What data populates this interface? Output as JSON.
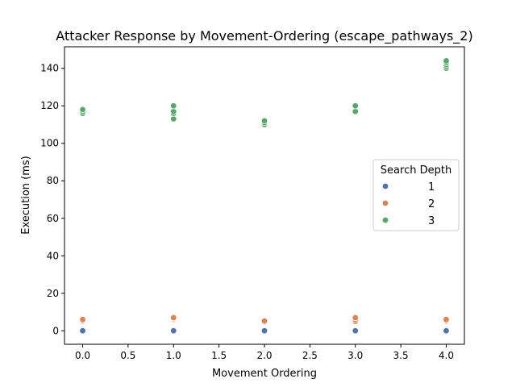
{
  "chart_data": {
    "type": "scatter",
    "title": "Attacker Response by Movement-Ordering (escape_pathways_2)",
    "xlabel": "Movement Ordering",
    "ylabel": "Execution (ms)",
    "xlim": [
      -0.2,
      4.2
    ],
    "ylim": [
      -7.2,
      151.5
    ],
    "xticks": [
      0.0,
      0.5,
      1.0,
      1.5,
      2.0,
      2.5,
      3.0,
      3.5,
      4.0
    ],
    "xtick_labels": [
      "0.0",
      "0.5",
      "1.0",
      "1.5",
      "2.0",
      "2.5",
      "3.0",
      "3.5",
      "4.0"
    ],
    "yticks": [
      0,
      20,
      40,
      60,
      80,
      100,
      120,
      140
    ],
    "ytick_labels": [
      "0",
      "20",
      "40",
      "60",
      "80",
      "100",
      "120",
      "140"
    ],
    "grid": false,
    "legend": {
      "title": "Search Depth",
      "placement": "center-right"
    },
    "series": [
      {
        "name": "1",
        "color": "#4c72b0",
        "x": [
          0,
          0,
          1,
          1,
          2,
          2,
          3,
          3,
          4,
          4
        ],
        "y": [
          0,
          0,
          0,
          0,
          0,
          0,
          0,
          0,
          0,
          0
        ]
      },
      {
        "name": "2",
        "color": "#dd8452",
        "x": [
          0,
          0,
          0,
          1,
          1,
          1,
          2,
          2,
          3,
          3,
          3,
          4,
          4,
          4
        ],
        "y": [
          5,
          5.5,
          6,
          6,
          6.5,
          7,
          4.8,
          5.2,
          5,
          6,
          7,
          5,
          5.5,
          6
        ]
      },
      {
        "name": "3",
        "color": "#55a868",
        "x": [
          0,
          0,
          0,
          1,
          1,
          1,
          1,
          2,
          2,
          2,
          3,
          3,
          4,
          4,
          4,
          4,
          4
        ],
        "y": [
          116,
          117,
          118,
          113,
          116,
          117,
          120,
          110,
          111,
          112,
          117,
          120,
          140,
          141,
          142,
          143,
          144
        ]
      }
    ]
  }
}
